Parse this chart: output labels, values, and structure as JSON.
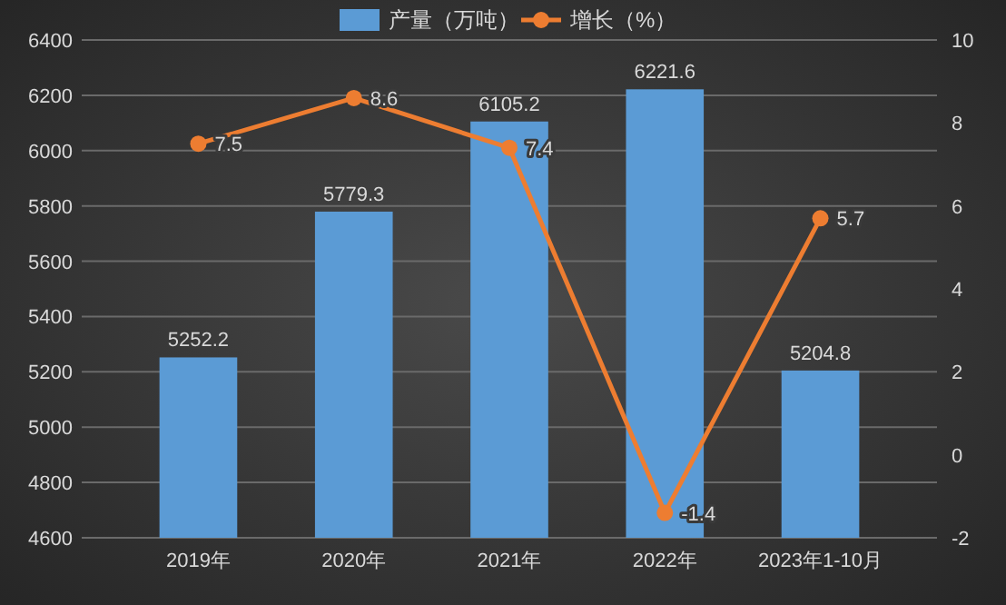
{
  "chart_data": {
    "type": "bar",
    "categories": [
      "2019年",
      "2020年",
      "2021年",
      "2022年",
      "2023年1-10月"
    ],
    "series": [
      {
        "name": "产量（万吨）",
        "color": "#5b9bd5",
        "values": [
          5252.2,
          5779.3,
          6105.2,
          6221.6,
          5204.8
        ]
      },
      {
        "name": "增长（%）",
        "type": "line",
        "axis": "y2",
        "color": "#ed7d31",
        "values": [
          7.5,
          8.6,
          7.4,
          -1.4,
          5.7
        ]
      }
    ],
    "ylim": [
      4600,
      6400
    ],
    "yticks": [
      4600,
      4800,
      5000,
      5200,
      5400,
      5600,
      5800,
      6000,
      6200,
      6400
    ],
    "y2lim": [
      -2,
      10
    ],
    "y2ticks": [
      -2,
      0,
      2,
      4,
      6,
      8,
      10
    ],
    "grid": "y",
    "legend": "top",
    "marker": "circle",
    "line_style": "solid",
    "data_labels": true
  }
}
